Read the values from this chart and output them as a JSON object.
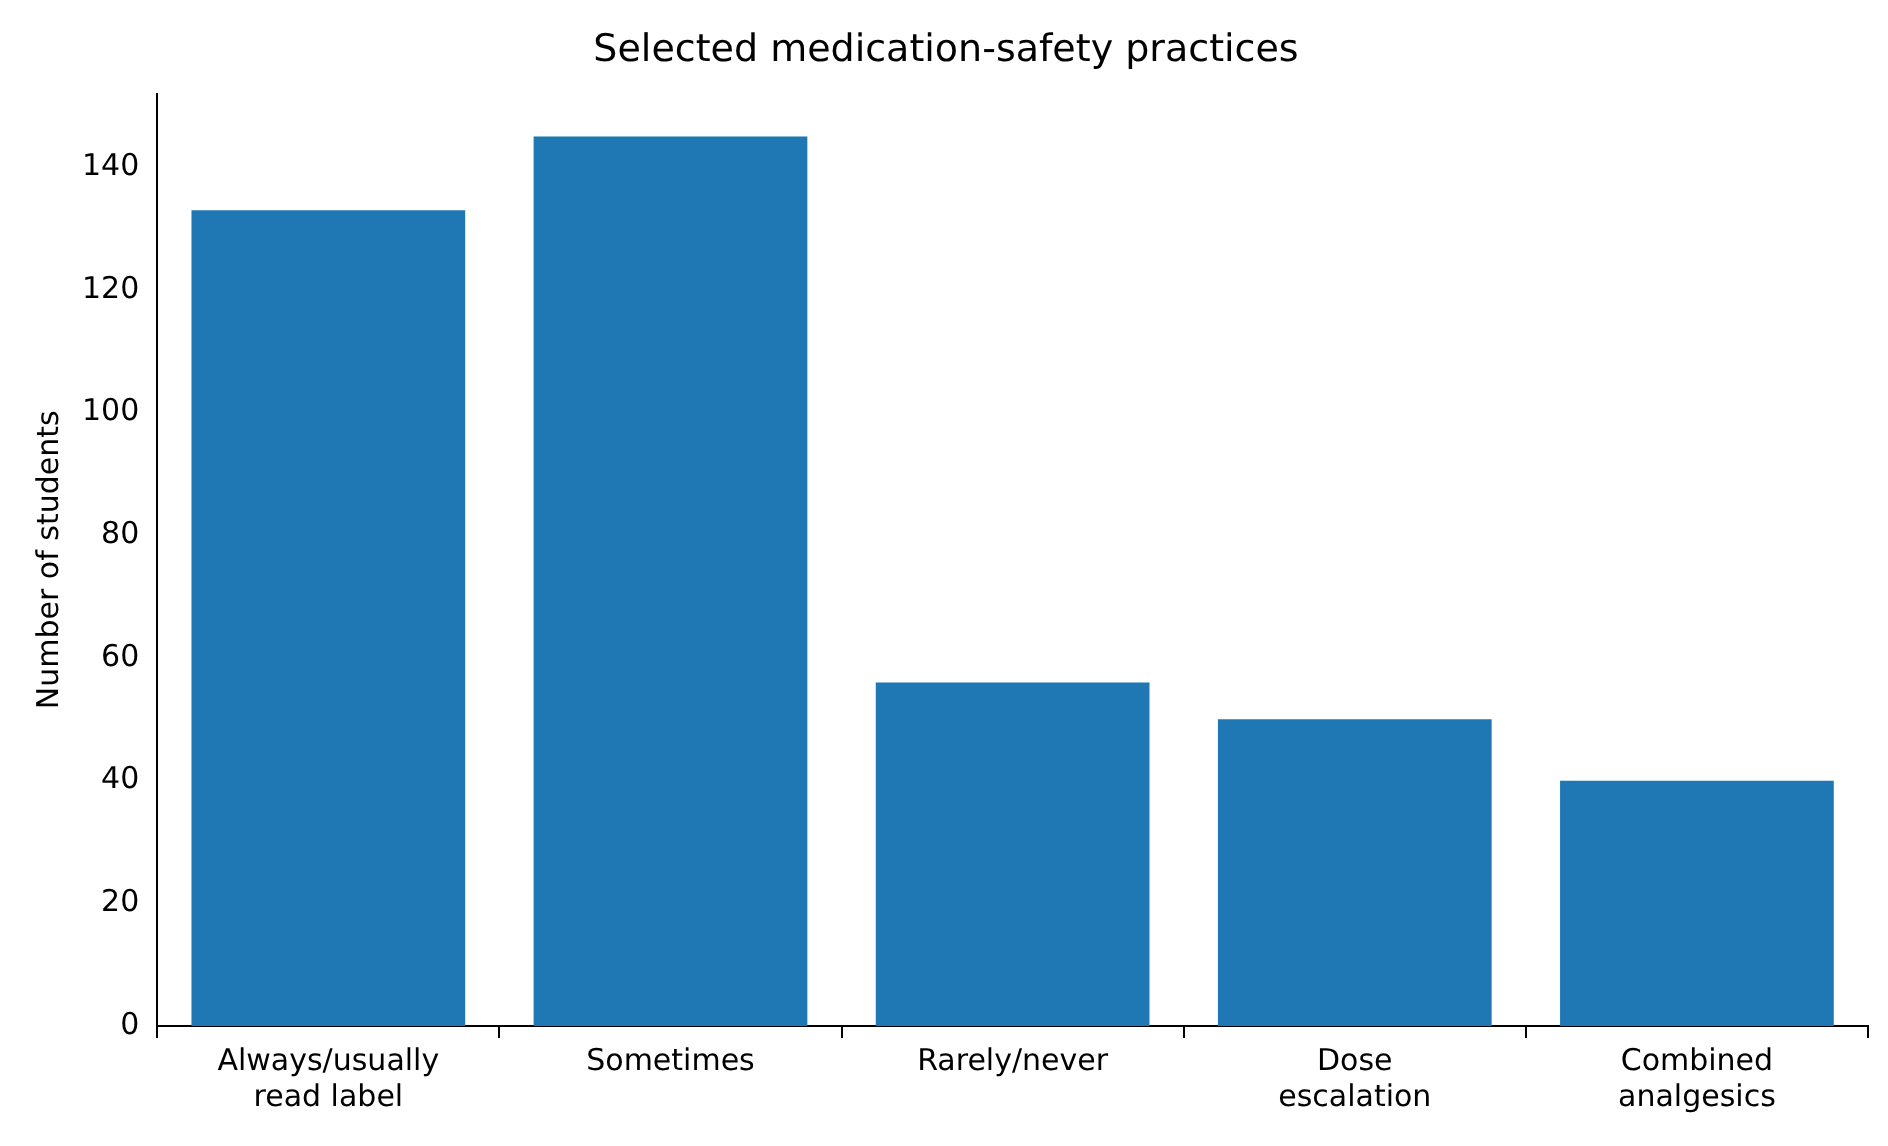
{
  "chart_data": {
    "type": "bar",
    "title": "Selected medication-safety practices",
    "ylabel": "Number of students",
    "categories": [
      "Always/usually read label",
      "Sometimes",
      "Rarely/never",
      "Dose escalation",
      "Combined analgesics"
    ],
    "values": [
      133,
      145,
      56,
      50,
      40
    ],
    "color": "#1f77b4",
    "ylim": [
      0,
      152
    ],
    "yticks": [
      0,
      20,
      40,
      60,
      80,
      100,
      120,
      140
    ],
    "grid": false,
    "legend": false
  }
}
